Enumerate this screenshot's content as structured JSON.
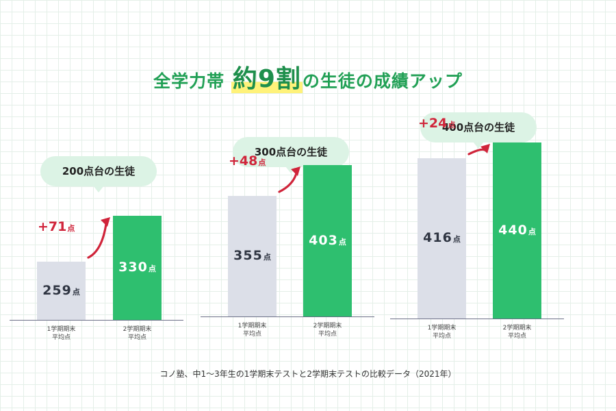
{
  "title": {
    "before": "全学力帯",
    "highlight": "約9割",
    "after": "の生徒の成績アップ"
  },
  "footnote": "コノ塾、中1〜3年生の1学期末テストと2学期末テストの比較データ（2021年）",
  "unit": "点",
  "colors": {
    "title": "#21a055",
    "before_bar": "#dcdfe8",
    "after_bar": "#2ebf6f",
    "increase": "#d0243a",
    "bubble": "#dcf3e5"
  },
  "chart_data": [
    {
      "type": "bar",
      "title": "200点台の生徒",
      "categories": [
        "1学期期末\n平均点",
        "2学期期末\n平均点"
      ],
      "category_lines": [
        [
          "1学期期末",
          "平均点"
        ],
        [
          "2学期期末",
          "平均点"
        ]
      ],
      "values": [
        259,
        330
      ],
      "increase": "+71",
      "unit": "点"
    },
    {
      "type": "bar",
      "title": "300点台の生徒",
      "categories": [
        "1学期期末\n平均点",
        "2学期期末\n平均点"
      ],
      "category_lines": [
        [
          "1学期期末",
          "平均点"
        ],
        [
          "2学期期末",
          "平均点"
        ]
      ],
      "values": [
        355,
        403
      ],
      "increase": "+48",
      "unit": "点"
    },
    {
      "type": "bar",
      "title": "400点台の生徒",
      "categories": [
        "1学期期末\n平均点",
        "2学期期末\n平均点"
      ],
      "category_lines": [
        [
          "1学期期末",
          "平均点"
        ],
        [
          "2学期期末",
          "平均点"
        ]
      ],
      "values": [
        416,
        440
      ],
      "increase": "+24",
      "unit": "点"
    }
  ]
}
